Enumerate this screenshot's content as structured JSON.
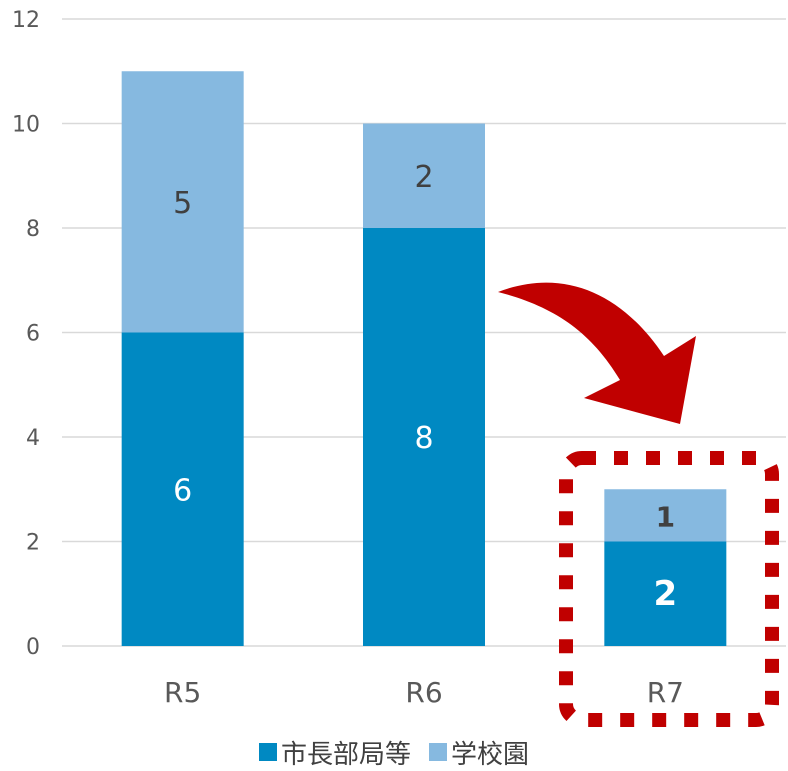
{
  "chart_data": {
    "type": "bar",
    "stacked": true,
    "categories": [
      "R5",
      "R6",
      "R7"
    ],
    "series": [
      {
        "name": "市長部局等",
        "values": [
          6,
          8,
          2
        ],
        "color": "#0089C2",
        "label_color": "#ffffff"
      },
      {
        "name": "学校園",
        "values": [
          5,
          2,
          1
        ],
        "color": "#86B9E0",
        "label_color": "#404040"
      }
    ],
    "ylim": [
      0,
      12
    ],
    "yticks": [
      0,
      2,
      4,
      6,
      8,
      10,
      12
    ],
    "grid": true,
    "legend_position": "bottom",
    "highlight_category": "R7",
    "highlight_color": "#C00000",
    "arrow_color": "#C00000",
    "tick_color": "#595959"
  }
}
